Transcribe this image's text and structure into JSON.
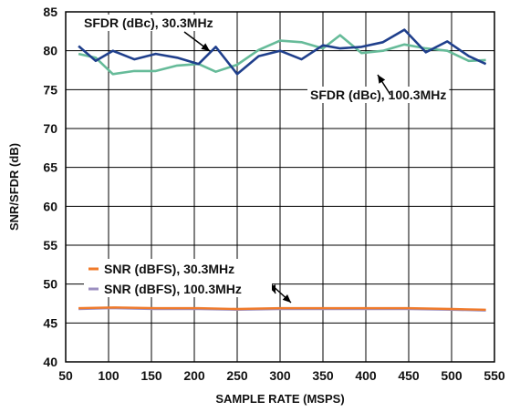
{
  "chart_data": {
    "type": "line",
    "xlabel": "SAMPLE RATE (MSPS)",
    "ylabel": "SNR/SFDR (dB)",
    "xlim": [
      50,
      550
    ],
    "ylim": [
      40,
      85
    ],
    "xticks": [
      50,
      100,
      150,
      200,
      250,
      300,
      350,
      400,
      450,
      500,
      550
    ],
    "yticks": [
      40,
      45,
      50,
      55,
      60,
      65,
      70,
      75,
      80,
      85
    ],
    "x_tick_labels": [
      "50",
      "100",
      "150",
      "200",
      "250",
      "300",
      "350",
      "400",
      "450",
      "500",
      "550"
    ],
    "y_tick_labels": [
      "40",
      "45",
      "50",
      "55",
      "60",
      "65",
      "70",
      "75",
      "80",
      "85"
    ],
    "grid": true,
    "series": [
      {
        "name": "SFDR (dBc), 30.3MHz",
        "color": "#1f3f8c",
        "x": [
          65,
          85,
          105,
          130,
          155,
          180,
          205,
          225,
          250,
          275,
          300,
          325,
          350,
          370,
          395,
          420,
          445,
          470,
          495,
          520,
          540
        ],
        "values": [
          80.6,
          78.7,
          80.0,
          78.9,
          79.6,
          79.1,
          78.3,
          80.5,
          77.0,
          79.3,
          80.0,
          78.9,
          80.7,
          80.3,
          80.5,
          81.1,
          82.7,
          79.8,
          81.2,
          79.3,
          78.3
        ]
      },
      {
        "name": "SFDR (dBc), 100.3MHz",
        "color": "#66bb99",
        "x": [
          65,
          85,
          105,
          130,
          155,
          180,
          205,
          225,
          250,
          275,
          300,
          325,
          350,
          370,
          395,
          420,
          445,
          470,
          495,
          520,
          540
        ],
        "values": [
          79.6,
          79.1,
          77.0,
          77.4,
          77.4,
          78.1,
          78.3,
          77.3,
          78.2,
          80.1,
          81.3,
          81.1,
          80.3,
          82.0,
          79.7,
          80.0,
          80.8,
          80.3,
          80.0,
          78.7,
          78.8
        ]
      },
      {
        "name": "SNR (dBFS), 30.3MHz",
        "color": "#f07a2a",
        "x": [
          65,
          105,
          155,
          205,
          250,
          300,
          350,
          400,
          450,
          500,
          540
        ],
        "values": [
          46.9,
          47.0,
          46.9,
          46.9,
          46.8,
          46.9,
          46.9,
          46.9,
          46.9,
          46.8,
          46.7
        ]
      },
      {
        "name": "SNR (dBFS), 100.3MHz",
        "color": "#9c8fc0",
        "x": [
          65,
          105,
          155,
          205,
          250,
          300,
          350,
          400,
          450,
          500,
          540
        ],
        "values": [
          46.8,
          46.9,
          46.8,
          46.8,
          46.7,
          46.8,
          46.8,
          46.8,
          46.8,
          46.7,
          46.6
        ]
      }
    ],
    "annotations": [
      {
        "text": "SFDR (dBc), 30.3MHz",
        "series": 0
      },
      {
        "text": "SFDR (dBc), 100.3MHz",
        "series": 1
      }
    ],
    "legend": {
      "placement": "lower-left",
      "entries": [
        {
          "label": "SNR (dBFS), 30.3MHz",
          "color": "#f07a2a"
        },
        {
          "label": "SNR (dBFS), 100.3MHz",
          "color": "#9c8fc0"
        }
      ]
    }
  }
}
